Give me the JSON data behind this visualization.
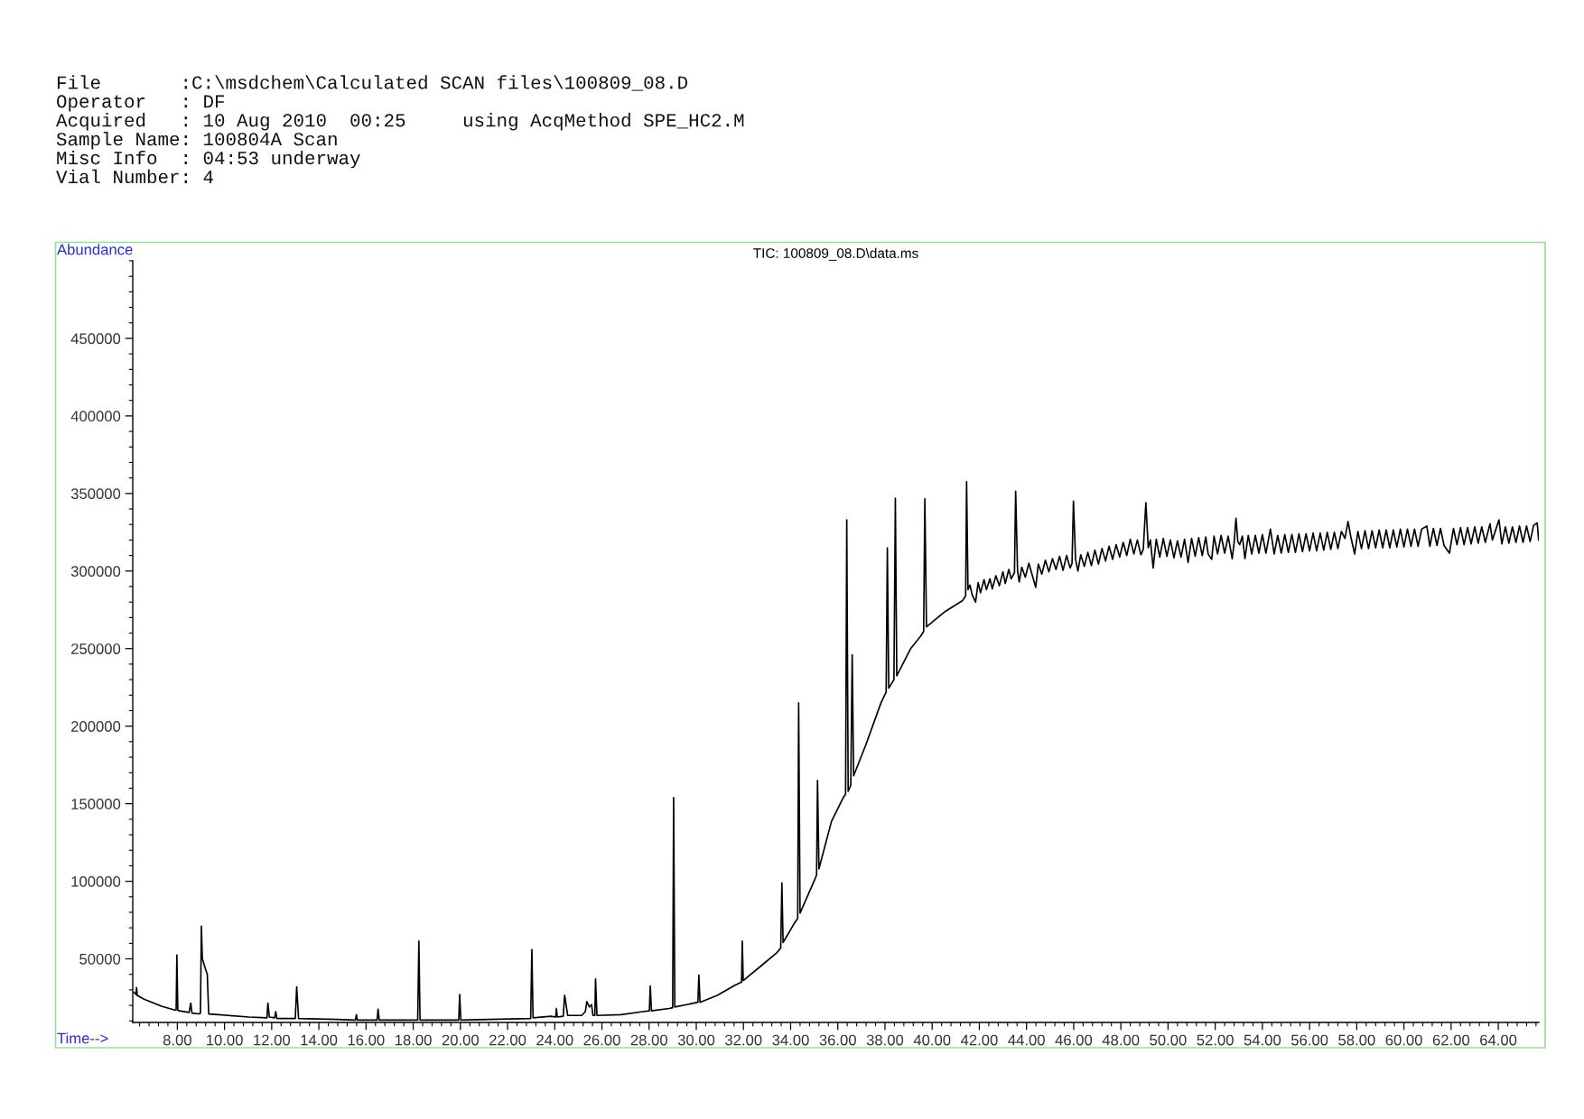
{
  "chart_data": {
    "type": "line",
    "title": "TIC: 100809_08.D\\data.ms",
    "xlabel": "Time-->",
    "ylabel": "Abundance",
    "annotations": [
      "File       :C:\\msdchem\\Calculated SCAN files\\100809_08.D",
      "Operator   : DF",
      "Acquired   : 10 Aug 2010  00:25     using AcqMethod SPE_HC2.M",
      "Sample Name: 100804A Scan",
      "Misc Info  : 04:53 underway",
      "Vial Number: 4"
    ],
    "x": [
      6.16,
      6.25,
      6.27,
      6.3,
      6.59,
      7.33,
      7.89,
      7.95,
      7.98,
      8.02,
      8.07,
      8.5,
      8.57,
      8.62,
      8.91,
      8.98,
      9.02,
      9.06,
      9.09,
      9.18,
      9.27,
      9.33,
      9.74,
      11.04,
      11.8,
      11.84,
      11.9,
      12.13,
      12.17,
      12.22,
      13.0,
      13.06,
      13.14,
      14.75,
      15.55,
      15.59,
      15.63,
      16.47,
      16.51,
      16.56,
      17.35,
      18.19,
      18.24,
      18.29,
      19.93,
      19.97,
      20.02,
      21.24,
      22.98,
      23.03,
      23.08,
      23.84,
      24.04,
      24.07,
      24.11,
      24.36,
      24.42,
      24.55,
      25.14,
      25.3,
      25.36,
      25.47,
      25.56,
      25.62,
      25.7,
      25.73,
      25.79,
      26.81,
      27.74,
      28.01,
      28.05,
      28.1,
      28.85,
      29.0,
      29.04,
      29.09,
      29.6,
      30.07,
      30.11,
      30.16,
      30.89,
      31.64,
      31.92,
      31.95,
      31.99,
      32.75,
      33.42,
      33.58,
      33.63,
      33.68,
      34.14,
      34.3,
      34.34,
      34.4,
      34.99,
      35.1,
      35.14,
      35.2,
      35.73,
      36.25,
      36.33,
      36.38,
      36.44,
      36.55,
      36.61,
      36.67,
      37.19,
      37.83,
      38.05,
      38.1,
      38.16,
      38.38,
      38.44,
      38.5,
      39.09,
      39.51,
      39.64,
      39.69,
      39.76,
      40.56,
      41.29,
      41.42,
      41.46,
      41.52,
      41.6,
      41.7,
      41.84,
      41.95,
      42.05,
      42.2,
      42.3,
      42.45,
      42.55,
      42.7,
      42.85,
      43.0,
      43.1,
      43.25,
      43.35,
      43.49,
      43.54,
      43.62,
      43.69,
      43.8,
      43.95,
      44.1,
      44.25,
      44.39,
      44.5,
      44.65,
      44.8,
      44.95,
      45.1,
      45.25,
      45.4,
      45.55,
      45.7,
      45.85,
      45.93,
      45.99,
      46.08,
      46.18,
      46.3,
      46.45,
      46.6,
      46.75,
      46.9,
      47.05,
      47.2,
      47.35,
      47.5,
      47.65,
      47.8,
      47.95,
      48.1,
      48.25,
      48.4,
      48.55,
      48.7,
      48.85,
      48.95,
      49.06,
      49.16,
      49.25,
      49.37,
      49.5,
      49.65,
      49.8,
      49.95,
      50.1,
      50.25,
      50.4,
      50.55,
      50.7,
      50.85,
      51.0,
      51.15,
      51.3,
      51.45,
      51.6,
      51.7,
      51.85,
      51.95,
      52.1,
      52.25,
      52.4,
      52.55,
      52.72,
      52.8,
      52.88,
      52.96,
      53.04,
      53.15,
      53.26,
      53.4,
      53.55,
      53.7,
      53.85,
      54.0,
      54.15,
      54.34,
      54.5,
      54.65,
      54.8,
      54.95,
      55.1,
      55.25,
      55.4,
      55.55,
      55.7,
      55.85,
      56.0,
      56.15,
      56.3,
      56.45,
      56.6,
      56.75,
      56.9,
      57.05,
      57.2,
      57.35,
      57.5,
      57.63,
      57.75,
      57.91,
      58.05,
      58.2,
      58.35,
      58.5,
      58.65,
      58.8,
      58.95,
      59.1,
      59.25,
      59.4,
      59.55,
      59.7,
      59.85,
      60.0,
      60.15,
      60.3,
      60.45,
      60.6,
      60.75,
      60.97,
      61.1,
      61.25,
      61.4,
      61.55,
      61.7,
      61.93,
      62.1,
      62.25,
      62.4,
      62.55,
      62.7,
      62.85,
      63.0,
      63.15,
      63.3,
      63.45,
      63.65,
      63.75,
      63.9,
      64.03,
      64.15,
      64.3,
      64.45,
      64.6,
      64.75,
      64.9,
      65.05,
      65.2,
      65.35,
      65.5,
      65.65,
      65.71
    ],
    "series": [
      {
        "color": "#000000",
        "values": [
          28500,
          27000,
          31500,
          26500,
          24000,
          19500,
          17000,
          17000,
          52500,
          17000,
          16500,
          15500,
          21500,
          15000,
          14500,
          15000,
          71000,
          50000,
          48500,
          44000,
          40000,
          14500,
          14000,
          12500,
          12000,
          21500,
          12500,
          12000,
          16000,
          11500,
          11500,
          32000,
          11500,
          11000,
          10500,
          14000,
          10500,
          10500,
          17500,
          10500,
          10500,
          10500,
          61500,
          10500,
          10500,
          27000,
          10500,
          11000,
          11500,
          56000,
          12000,
          13000,
          12500,
          18000,
          12500,
          13000,
          26500,
          13500,
          13500,
          16000,
          22500,
          19000,
          20500,
          13500,
          13500,
          37000,
          13500,
          14000,
          16000,
          16500,
          32500,
          16500,
          18000,
          18500,
          154000,
          19000,
          20500,
          22000,
          39500,
          22000,
          26500,
          33000,
          35000,
          61500,
          36000,
          45500,
          54000,
          57000,
          99000,
          60500,
          72500,
          76000,
          215000,
          79500,
          100000,
          104000,
          165000,
          108000,
          138500,
          154500,
          156000,
          333000,
          158000,
          162000,
          246000,
          168000,
          188000,
          215000,
          222000,
          315000,
          224500,
          230000,
          347000,
          232500,
          250000,
          258000,
          261000,
          346500,
          264000,
          274000,
          281000,
          284000,
          357500,
          288000,
          291000,
          284500,
          280000,
          292500,
          286000,
          294500,
          288000,
          295000,
          288500,
          297000,
          290500,
          299500,
          292000,
          301000,
          295000,
          299000,
          351500,
          300500,
          293000,
          302500,
          296000,
          305000,
          297000,
          289500,
          304500,
          298000,
          307000,
          299500,
          308000,
          301000,
          309500,
          300500,
          310000,
          302000,
          305000,
          345000,
          307500,
          300000,
          310500,
          303000,
          312000,
          303500,
          313500,
          304500,
          314500,
          306500,
          316000,
          307500,
          317000,
          309000,
          318500,
          310000,
          320500,
          311000,
          320000,
          310500,
          314000,
          344000,
          315000,
          320000,
          302000,
          320500,
          309000,
          321000,
          309500,
          320000,
          308500,
          319500,
          309000,
          320500,
          305500,
          321000,
          309500,
          321500,
          310000,
          322000,
          311000,
          307500,
          322500,
          311000,
          323000,
          311500,
          322500,
          308000,
          318000,
          334000,
          319000,
          317000,
          322500,
          308000,
          323000,
          311000,
          323000,
          311500,
          323500,
          311500,
          327000,
          311000,
          323000,
          311500,
          323500,
          312000,
          323500,
          312000,
          324000,
          312500,
          324000,
          313000,
          324500,
          313000,
          324500,
          313500,
          325000,
          314000,
          325000,
          314500,
          325500,
          321000,
          332000,
          322000,
          311000,
          325500,
          314500,
          326000,
          314500,
          326000,
          315000,
          326500,
          315000,
          326500,
          315000,
          326500,
          315500,
          327000,
          315500,
          327000,
          316000,
          327000,
          316000,
          327000,
          329000,
          316000,
          327500,
          316500,
          327500,
          316500,
          311500,
          327500,
          317000,
          328000,
          317000,
          328000,
          317500,
          328500,
          318000,
          328500,
          318500,
          330500,
          320000,
          327000,
          333000,
          317500,
          328500,
          318000,
          328500,
          318500,
          329000,
          318500,
          329000,
          319000,
          329500,
          331000,
          320000
        ]
      }
    ],
    "xlim": [
      6.11,
      65.72
    ],
    "ylim": [
      9000,
      500000
    ],
    "xticks": [
      {
        "value": 8,
        "label": "8.00"
      },
      {
        "value": 10,
        "label": "10.00"
      },
      {
        "value": 12,
        "label": "12.00"
      },
      {
        "value": 14,
        "label": "14.00"
      },
      {
        "value": 16,
        "label": "16.00"
      },
      {
        "value": 18,
        "label": "18.00"
      },
      {
        "value": 20,
        "label": "20.00"
      },
      {
        "value": 22,
        "label": "22.00"
      },
      {
        "value": 24,
        "label": "24.00"
      },
      {
        "value": 26,
        "label": "26.00"
      },
      {
        "value": 28,
        "label": "28.00"
      },
      {
        "value": 30,
        "label": "30.00"
      },
      {
        "value": 32,
        "label": "32.00"
      },
      {
        "value": 34,
        "label": "34.00"
      },
      {
        "value": 36,
        "label": "36.00"
      },
      {
        "value": 38,
        "label": "38.00"
      },
      {
        "value": 40,
        "label": "40.00"
      },
      {
        "value": 42,
        "label": "42.00"
      },
      {
        "value": 44,
        "label": "44.00"
      },
      {
        "value": 46,
        "label": "46.00"
      },
      {
        "value": 48,
        "label": "48.00"
      },
      {
        "value": 50,
        "label": "50.00"
      },
      {
        "value": 52,
        "label": "52.00"
      },
      {
        "value": 54,
        "label": "54.00"
      },
      {
        "value": 56,
        "label": "56.00"
      },
      {
        "value": 58,
        "label": "58.00"
      },
      {
        "value": 60,
        "label": "60.00"
      },
      {
        "value": 62,
        "label": "62.00"
      },
      {
        "value": 64,
        "label": "64.00"
      }
    ],
    "yticks": [
      50000,
      100000,
      150000,
      200000,
      250000,
      300000,
      350000,
      400000,
      450000
    ],
    "line_style": "solid"
  }
}
